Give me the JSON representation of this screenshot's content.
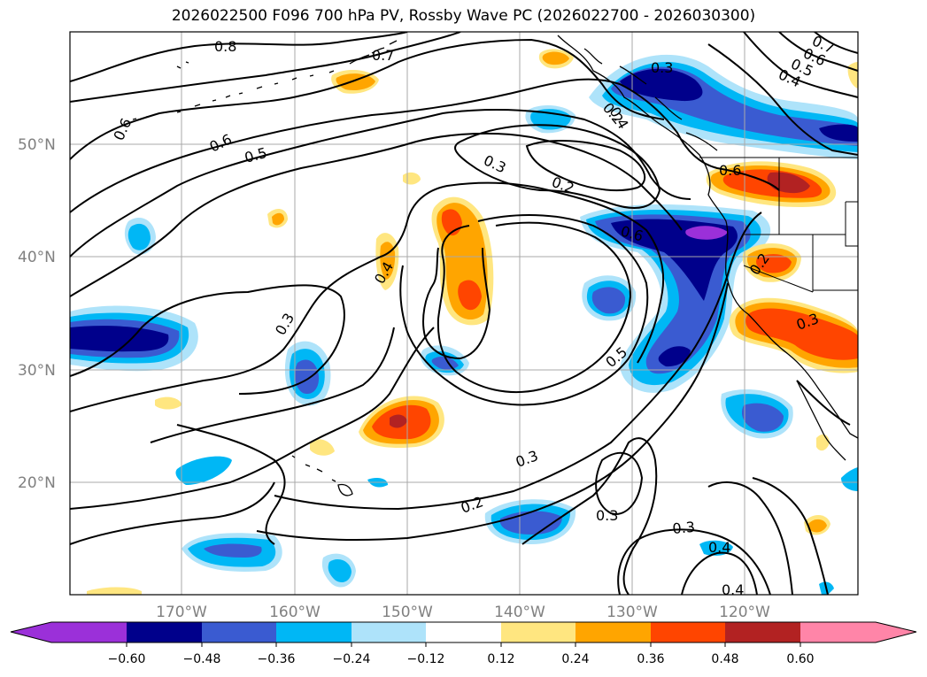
{
  "title": "2026022500 F096 700 hPa PV, Rossby Wave PC (2026022700 - 2026030300)",
  "map": {
    "lat_labels": [
      "50°N",
      "40°N",
      "30°N",
      "20°N"
    ],
    "lon_labels": [
      "170°W",
      "160°W",
      "150°W",
      "140°W",
      "130°W",
      "120°W"
    ],
    "contour_labels": [
      "0.8",
      "0.7",
      "0.6",
      "0.6",
      "0.5",
      "0.3",
      "0.2",
      "0.4",
      "0.3",
      "0.6",
      "0.5",
      "0.3",
      "0.2",
      "0.3",
      "0.3",
      "0.4",
      "0.7",
      "0.6",
      "0.5",
      "0.4",
      "0.3",
      "0.2",
      "0.3",
      "0.6",
      "0.2",
      "0.4",
      "0.4"
    ]
  },
  "colorbar": {
    "ticks": [
      "−0.60",
      "−0.48",
      "−0.36",
      "−0.24",
      "−0.12",
      "0.12",
      "0.24",
      "0.36",
      "0.48",
      "0.60"
    ],
    "colors": [
      "#9b30d9",
      "#00008b",
      "#3a5bd1",
      "#00b7f5",
      "#aee3fa",
      "#ffffff",
      "#ffe680",
      "#ffa500",
      "#ff4500",
      "#b22222",
      "#ff85a8"
    ]
  }
}
